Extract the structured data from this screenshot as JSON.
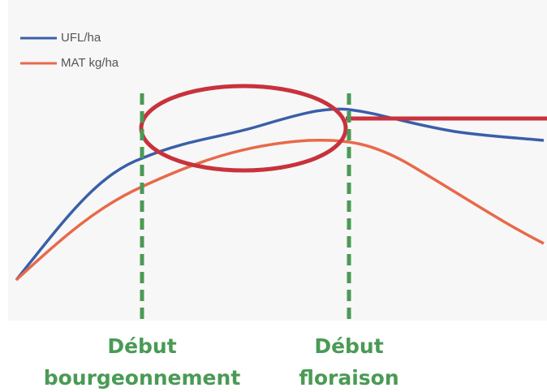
{
  "legend": [
    {
      "name": "UFL/ha",
      "color": "#3a5fa8"
    },
    {
      "name": "MAT kg/ha",
      "color": "#e8694a"
    }
  ],
  "stages": [
    {
      "line1": "Début",
      "line2": "bourgeonnement"
    },
    {
      "line1": "Début",
      "line2": "floraison"
    }
  ]
}
